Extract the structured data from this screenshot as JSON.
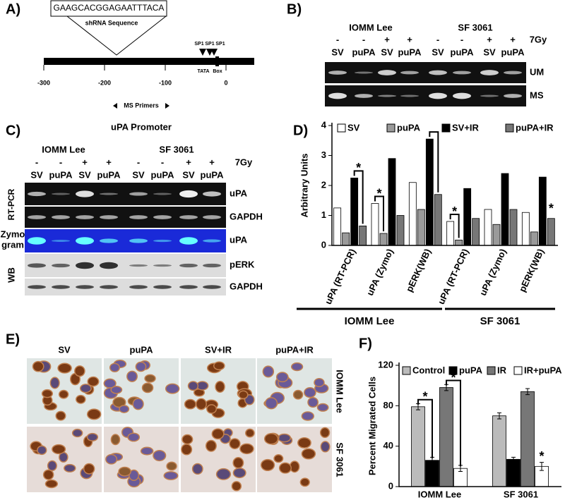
{
  "panel_a": {
    "label": "A)",
    "sequence": "GAAGCACGGAGAATTTACA",
    "sequence_caption": "shRNA Sequence",
    "sp1": [
      "SP1",
      "SP1",
      "SP1"
    ],
    "tata": "TATA",
    "box": "Box",
    "ticks": [
      -300,
      -200,
      -100,
      0
    ],
    "primers": "MS Primers"
  },
  "panel_b": {
    "label": "B)",
    "cell_lines": [
      "IOMM Lee",
      "SF 3061"
    ],
    "treatment": [
      "-",
      "-",
      "+",
      "+",
      "-",
      "-",
      "+",
      "+"
    ],
    "dose": "7Gy",
    "lanes": [
      "SV",
      "puPA",
      "SV",
      "puPA",
      "SV",
      "puPA",
      "SV",
      "puPA"
    ],
    "rows": [
      "UM",
      "MS"
    ]
  },
  "panel_c": {
    "label": "C)",
    "title": "uPA Promoter",
    "cell_lines": [
      "IOMM Lee",
      "SF 3061"
    ],
    "treatment": [
      "-",
      "-",
      "+",
      "+",
      "-",
      "-",
      "+",
      "+"
    ],
    "dose": "7Gy",
    "lanes": [
      "SV",
      "puPA",
      "SV",
      "puPA",
      "SV",
      "puPA",
      "SV",
      "puPA"
    ],
    "rt_pcr": "RT-PCR",
    "zymogram": [
      "Zymo",
      "gram"
    ],
    "wb": "WB",
    "rows": [
      "uPA",
      "GAPDH",
      "uPA",
      "pERK",
      "GAPDH"
    ]
  },
  "panel_e": {
    "label": "E)",
    "columns": [
      "SV",
      "puPA",
      "SV+IR",
      "puPA+IR"
    ],
    "rows": [
      "IOMM Lee",
      "SF 3061"
    ]
  },
  "chart_data": [
    {
      "type": "bar",
      "label": "D)",
      "ylabel": "Arbitrary Units",
      "categories": [
        "uPA (RT-PCR)",
        "uPA (Zymo)",
        "pERK(WB)",
        "uPA (RT-PCR)",
        "uPA (Zymo)",
        "pERK(WB)"
      ],
      "groups": [
        "IOMM Lee",
        "SF 3061"
      ],
      "series": [
        {
          "name": "SV",
          "color": "#ffffff",
          "values": [
            1.25,
            1.4,
            2.1,
            0.8,
            1.2,
            1.1
          ]
        },
        {
          "name": "puPA",
          "color": "#9a9a9a",
          "values": [
            0.42,
            0.4,
            1.2,
            0.18,
            0.7,
            0.45
          ]
        },
        {
          "name": "SV+IR",
          "color": "#000000",
          "values": [
            2.25,
            2.9,
            3.55,
            1.9,
            2.4,
            2.28
          ]
        },
        {
          "name": "puPA+IR",
          "color": "#777777",
          "values": [
            0.65,
            1.0,
            1.7,
            0.9,
            1.2,
            0.9
          ]
        }
      ],
      "ylim": [
        0,
        4
      ],
      "yticks": [
        0,
        1,
        2,
        3,
        4
      ],
      "annotations": [
        "*",
        "*",
        "*",
        "*"
      ]
    },
    {
      "type": "bar",
      "label": "F)",
      "ylabel": "Percent Migrated Cells",
      "categories": [
        "IOMM Lee",
        "SF 3061"
      ],
      "series": [
        {
          "name": "Control",
          "color": "#bbbbbb",
          "values": [
            79,
            70
          ],
          "errors": [
            3,
            3
          ]
        },
        {
          "name": "puPA",
          "color": "#000000",
          "values": [
            26,
            27
          ],
          "errors": [
            3,
            2
          ]
        },
        {
          "name": "IR",
          "color": "#777777",
          "values": [
            98,
            94
          ],
          "errors": [
            3,
            3
          ]
        },
        {
          "name": "IR+puPA",
          "color": "#ffffff",
          "values": [
            18,
            20
          ],
          "errors": [
            3,
            4
          ]
        }
      ],
      "ylim": [
        0,
        120
      ],
      "yticks": [
        0,
        40,
        80,
        120
      ],
      "annotations": [
        "*",
        "*",
        "*"
      ]
    }
  ]
}
